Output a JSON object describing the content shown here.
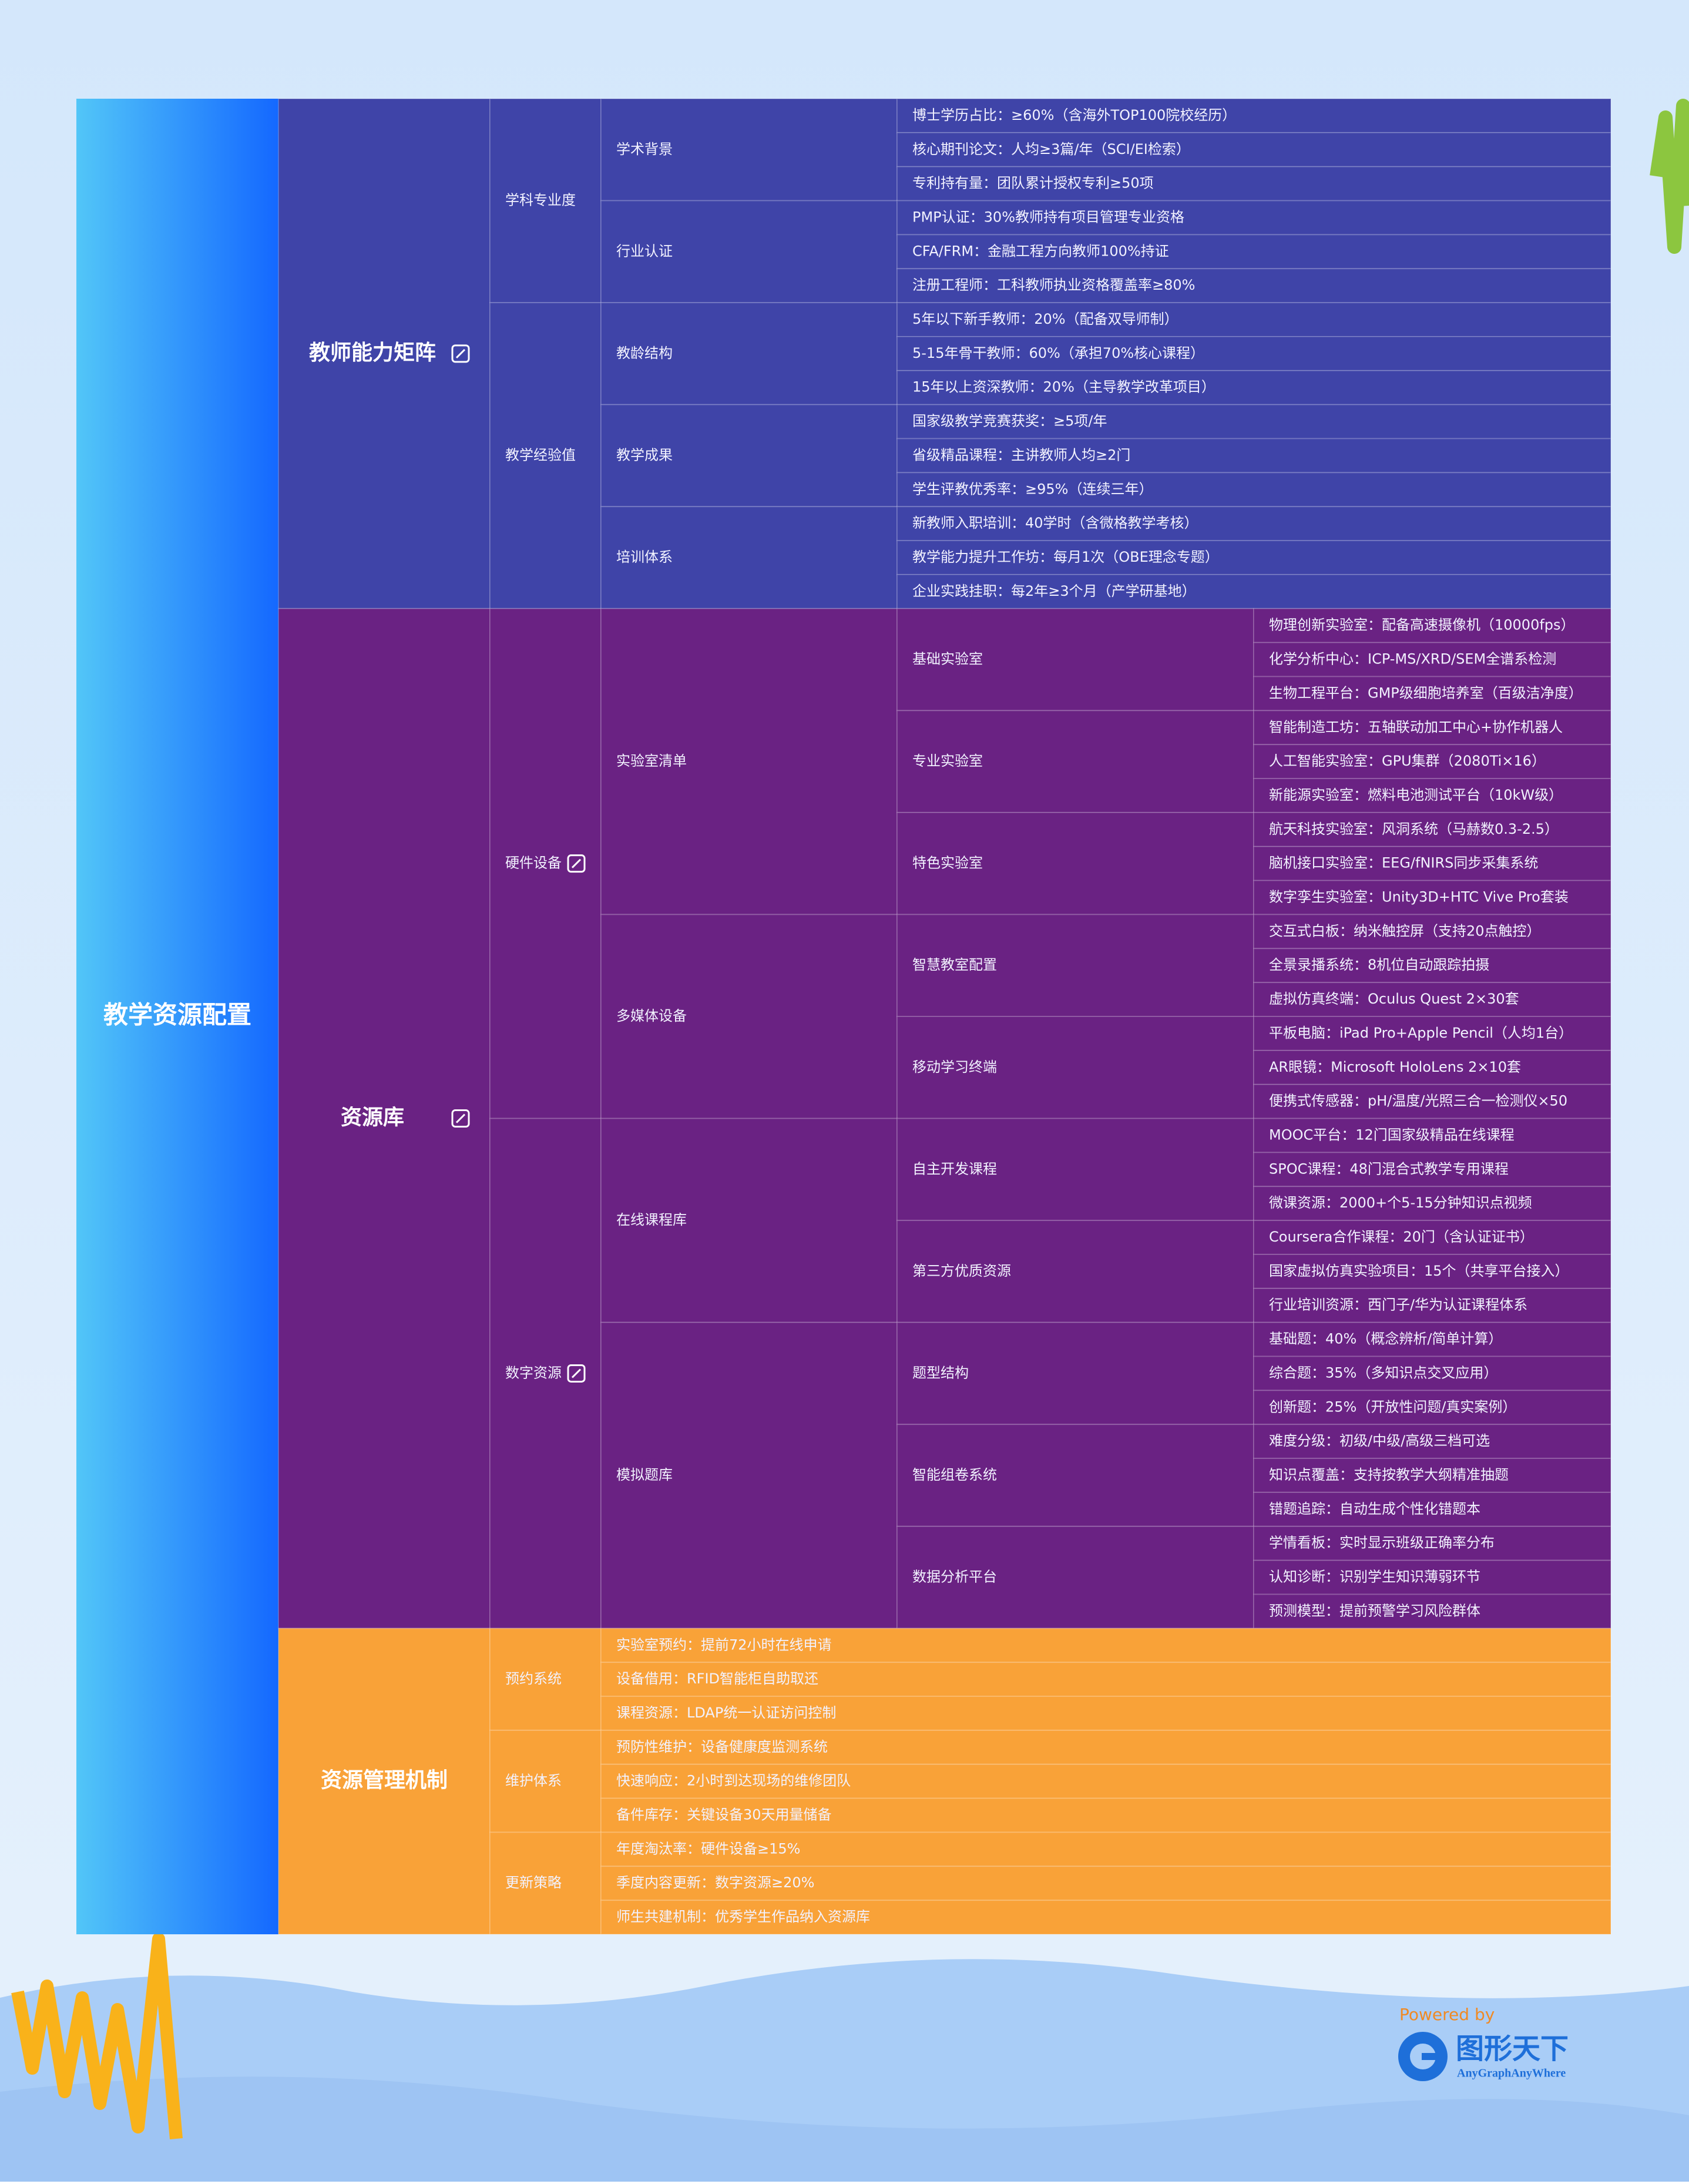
{
  "root": "教学资源配置",
  "sections": [
    {
      "label": "教师能力矩阵",
      "color": "#3f44a8",
      "icon": true,
      "children": [
        {
          "label": "学科专业度",
          "children": [
            {
              "label": "学术背景",
              "children": [
                "博士学历占比：≥60%（含海外TOP100院校经历）",
                "核心期刊论文：人均≥3篇/年（SCI/EI检索）",
                "专利持有量：团队累计授权专利≥50项"
              ]
            },
            {
              "label": "行业认证",
              "children": [
                "PMP认证：30%教师持有项目管理专业资格",
                "CFA/FRM：金融工程方向教师100%持证",
                "注册工程师：工科教师执业资格覆盖率≥80%"
              ]
            }
          ]
        },
        {
          "label": "教学经验值",
          "children": [
            {
              "label": "教龄结构",
              "children": [
                "5年以下新手教师：20%（配备双导师制）",
                "5-15年骨干教师：60%（承担70%核心课程）",
                "15年以上资深教师：20%（主导教学改革项目）"
              ]
            },
            {
              "label": "教学成果",
              "children": [
                "国家级教学竞赛获奖：≥5项/年",
                "省级精品课程：主讲教师人均≥2门",
                "学生评教优秀率：≥95%（连续三年）"
              ]
            },
            {
              "label": "培训体系",
              "children": [
                "新教师入职培训：40学时（含微格教学考核）",
                "教学能力提升工作坊：每月1次（OBE理念专题）",
                "企业实践挂职：每2年≥3个月（产学研基地）"
              ]
            }
          ]
        }
      ]
    },
    {
      "label": "资源库",
      "color": "#6a2283",
      "icon": true,
      "children": [
        {
          "label": "硬件设备",
          "icon": true,
          "children": [
            {
              "label": "实验室清单",
              "children": [
                {
                  "label": "基础实验室",
                  "children": [
                    "物理创新实验室：配备高速摄像机（10000fps）",
                    "化学分析中心：ICP-MS/XRD/SEM全谱系检测",
                    "生物工程平台：GMP级细胞培养室（百级洁净度）"
                  ]
                },
                {
                  "label": "专业实验室",
                  "children": [
                    "智能制造工坊：五轴联动加工中心+协作机器人",
                    "人工智能实验室：GPU集群（2080Ti×16）",
                    "新能源实验室：燃料电池测试平台（10kW级）"
                  ]
                },
                {
                  "label": "特色实验室",
                  "children": [
                    "航天科技实验室：风洞系统（马赫数0.3-2.5）",
                    "脑机接口实验室：EEG/fNIRS同步采集系统",
                    "数字孪生实验室：Unity3D+HTC Vive Pro套装"
                  ]
                }
              ]
            },
            {
              "label": "多媒体设备",
              "children": [
                {
                  "label": "智慧教室配置",
                  "children": [
                    "交互式白板：纳米触控屏（支持20点触控）",
                    "全景录播系统：8机位自动跟踪拍摄",
                    "虚拟仿真终端：Oculus Quest 2×30套"
                  ]
                },
                {
                  "label": "移动学习终端",
                  "children": [
                    "平板电脑：iPad Pro+Apple Pencil（人均1台）",
                    "AR眼镜：Microsoft HoloLens 2×10套",
                    "便携式传感器：pH/温度/光照三合一检测仪×50"
                  ]
                }
              ]
            }
          ]
        },
        {
          "label": "数字资源",
          "icon": true,
          "children": [
            {
              "label": "在线课程库",
              "children": [
                {
                  "label": "自主开发课程",
                  "children": [
                    "MOOC平台：12门国家级精品在线课程",
                    "SPOC课程：48门混合式教学专用课程",
                    "微课资源：2000+个5-15分钟知识点视频"
                  ]
                },
                {
                  "label": "第三方优质资源",
                  "children": [
                    "Coursera合作课程：20门（含认证证书）",
                    "国家虚拟仿真实验项目：15个（共享平台接入）",
                    "行业培训资源：西门子/华为认证课程体系"
                  ]
                }
              ]
            },
            {
              "label": "模拟题库",
              "children": [
                {
                  "label": "题型结构",
                  "children": [
                    "基础题：40%（概念辨析/简单计算）",
                    "综合题：35%（多知识点交叉应用）",
                    "创新题：25%（开放性问题/真实案例）"
                  ]
                },
                {
                  "label": "智能组卷系统",
                  "children": [
                    "难度分级：初级/中级/高级三档可选",
                    "知识点覆盖：支持按教学大纲精准抽题",
                    "错题追踪：自动生成个性化错题本"
                  ]
                },
                {
                  "label": "数据分析平台",
                  "children": [
                    "学情看板：实时显示班级正确率分布",
                    "认知诊断：识别学生知识薄弱环节",
                    "预测模型：提前预警学习风险群体"
                  ]
                }
              ]
            }
          ]
        }
      ]
    },
    {
      "label": "资源管理机制",
      "color": "#f9a238",
      "children": [
        {
          "label": "预约系统",
          "children": [
            "实验室预约：提前72小时在线申请",
            "设备借用：RFID智能柜自助取还",
            "课程资源：LDAP统一认证访问控制"
          ]
        },
        {
          "label": "维护体系",
          "children": [
            "预防性维护：设备健康度监测系统",
            "快速响应：2小时到达现场的维修团队",
            "备件库存：关键设备30天用量储备"
          ]
        },
        {
          "label": "更新策略",
          "children": [
            "年度淘汰率：硬件设备≥15%",
            "季度内容更新：数字资源≥20%",
            "师生共建机制：优秀学生作品纳入资源库"
          ]
        }
      ]
    }
  ],
  "footer": {
    "powered": "Powered by",
    "brand": "图形天下",
    "slogan": "AnyGraphAnyWhere"
  }
}
